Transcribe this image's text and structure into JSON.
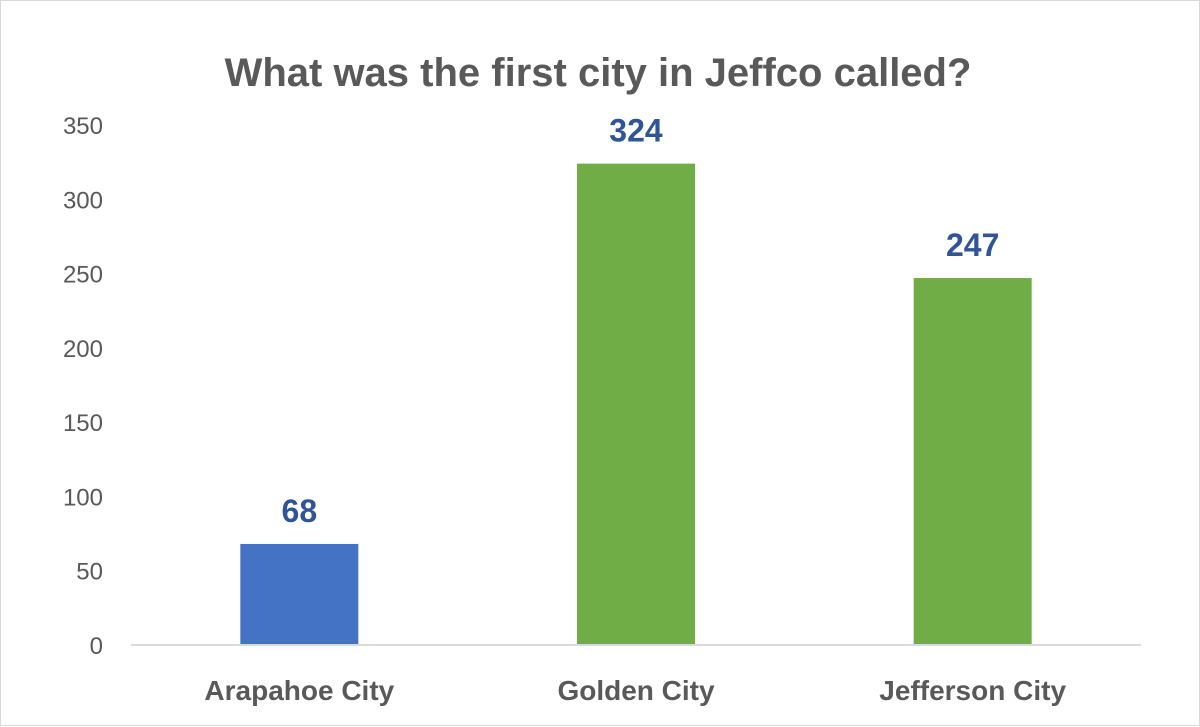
{
  "chart_data": {
    "type": "bar",
    "title": "What was the first city in Jeffco called?",
    "categories": [
      "Arapahoe City",
      "Golden City",
      "Jefferson City"
    ],
    "values": [
      68,
      324,
      247
    ],
    "bar_colors": [
      "#4472c4",
      "#70ad47",
      "#70ad47"
    ],
    "data_label_color": "#2f5597",
    "ylim": [
      0,
      350
    ],
    "yticks": [
      0,
      50,
      100,
      150,
      200,
      250,
      300,
      350
    ],
    "xlabel": "",
    "ylabel": "",
    "grid": false,
    "legend": "none"
  }
}
